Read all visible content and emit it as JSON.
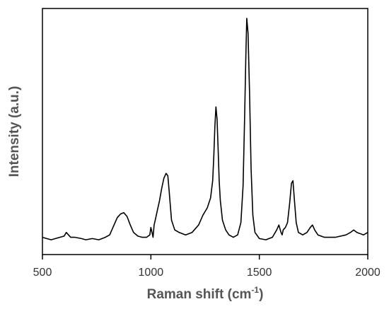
{
  "chart_data": {
    "type": "line",
    "title": "",
    "xlabel_main": "Raman shift (cm",
    "xlabel_sup": "-1",
    "xlabel_close": ")",
    "ylabel": "Intensity (a.u.)",
    "xlim": [
      500,
      2000
    ],
    "ylim": [
      0,
      1
    ],
    "x_ticks": [
      500,
      1000,
      1500,
      2000
    ],
    "x_tick_labels": [
      "500",
      "1000",
      "1500",
      "2000"
    ],
    "grid": false,
    "legend": "none",
    "line_color": "#000000",
    "series": [
      {
        "x": [
          500,
          520,
          540,
          560,
          580,
          600,
          610,
          620,
          630,
          650,
          680,
          700,
          730,
          760,
          790,
          810,
          830,
          845,
          860,
          875,
          890,
          905,
          920,
          940,
          960,
          980,
          995,
          1000,
          1005,
          1010,
          1015,
          1020,
          1030,
          1040,
          1050,
          1060,
          1070,
          1078,
          1085,
          1095,
          1110,
          1130,
          1160,
          1190,
          1220,
          1240,
          1260,
          1275,
          1285,
          1290,
          1295,
          1300,
          1305,
          1310,
          1315,
          1320,
          1330,
          1345,
          1360,
          1380,
          1400,
          1415,
          1425,
          1432,
          1438,
          1442,
          1448,
          1455,
          1462,
          1470,
          1480,
          1500,
          1530,
          1560,
          1580,
          1590,
          1600,
          1605,
          1610,
          1620,
          1630,
          1640,
          1648,
          1655,
          1662,
          1670,
          1680,
          1700,
          1720,
          1735,
          1745,
          1755,
          1770,
          1800,
          1850,
          1900,
          1920,
          1935,
          1950,
          1980,
          2000
        ],
        "y": [
          0.07,
          0.065,
          0.06,
          0.065,
          0.07,
          0.075,
          0.09,
          0.08,
          0.07,
          0.07,
          0.065,
          0.06,
          0.065,
          0.06,
          0.07,
          0.08,
          0.12,
          0.15,
          0.165,
          0.17,
          0.155,
          0.12,
          0.09,
          0.075,
          0.07,
          0.07,
          0.08,
          0.11,
          0.09,
          0.07,
          0.12,
          0.14,
          0.18,
          0.22,
          0.27,
          0.31,
          0.33,
          0.32,
          0.25,
          0.14,
          0.1,
          0.09,
          0.08,
          0.09,
          0.12,
          0.16,
          0.19,
          0.23,
          0.3,
          0.4,
          0.52,
          0.6,
          0.55,
          0.43,
          0.3,
          0.22,
          0.14,
          0.1,
          0.08,
          0.07,
          0.08,
          0.13,
          0.28,
          0.55,
          0.82,
          0.96,
          0.9,
          0.65,
          0.35,
          0.16,
          0.09,
          0.065,
          0.06,
          0.07,
          0.1,
          0.12,
          0.09,
          0.08,
          0.1,
          0.11,
          0.13,
          0.21,
          0.29,
          0.3,
          0.22,
          0.13,
          0.09,
          0.08,
          0.09,
          0.11,
          0.12,
          0.1,
          0.08,
          0.07,
          0.07,
          0.08,
          0.09,
          0.1,
          0.09,
          0.08,
          0.09
        ]
      }
    ]
  }
}
